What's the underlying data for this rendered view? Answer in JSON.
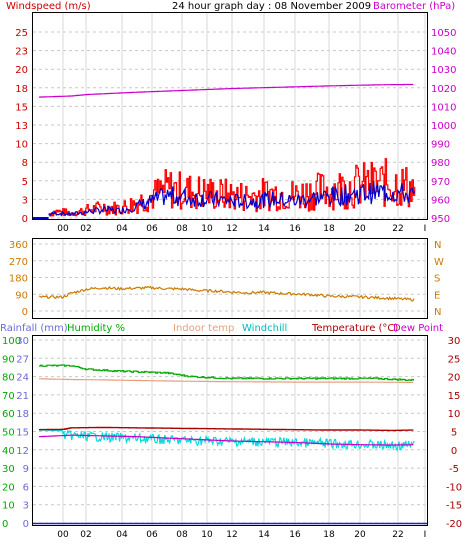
{
  "header": {
    "title": "24 hour graph day : 08 November 2009",
    "left_label": "Windspeed (m/s)",
    "right_label": "Barometer (hPa)"
  },
  "colors": {
    "windspeed": "#ff0000",
    "wind_avg": "#0000cc",
    "barometer": "#cc00cc",
    "direction": "#cc7a00",
    "rainfall": "#6b6bd6",
    "humidity": "#00aa00",
    "indoor": "#e8a080",
    "windchill": "#00dddd",
    "temperature": "#aa0000",
    "dewpoint": "#cc00cc",
    "grid": "#c8c8c8",
    "vgrid": "#d8d8d8"
  },
  "chart_data": [
    {
      "type": "line",
      "panel": "wind",
      "ylim_left": [
        0,
        25
      ],
      "left_ticks": [
        "25",
        "23",
        "20",
        "18",
        "15",
        "13",
        "10",
        "8",
        "5",
        "3",
        "0"
      ],
      "ylim_right": [
        950,
        1050
      ],
      "right_ticks": [
        "1050",
        "1040",
        "1030",
        "1020",
        "1010",
        "1000",
        "990",
        "980",
        "970",
        "960",
        "950"
      ],
      "x_ticks": [
        "00",
        "02",
        "04",
        "06",
        "08",
        "10",
        "12",
        "14",
        "16",
        "18",
        "20",
        "22",
        "I"
      ],
      "series": [
        {
          "name": "Windspeed (m/s)",
          "x": [
            0.6,
            1.0,
            2.0,
            3.0,
            4.0,
            5.0,
            6.0,
            7.0,
            8.0,
            9.0,
            10.0,
            11.0,
            12.0,
            13.0,
            14.0,
            15.0,
            16.0,
            17.0,
            18.0,
            19.0,
            20.0,
            21.0,
            22.0,
            23.0,
            23.5
          ],
          "y": [
            0.8,
            1.2,
            0.9,
            1.5,
            2.0,
            1.8,
            2.8,
            4.0,
            5.5,
            5.0,
            4.8,
            4.5,
            4.2,
            4.0,
            4.4,
            4.6,
            4.2,
            4.8,
            5.2,
            5.6,
            6.0,
            6.3,
            6.5,
            5.8,
            5.2
          ]
        },
        {
          "name": "Barometer (hPa)",
          "x": [
            0.0,
            2.0,
            3.0,
            6.0,
            9.0,
            12.0,
            15.0,
            18.0,
            20.0,
            22.0,
            23.5
          ],
          "y": [
            1015.0,
            1015.6,
            1016.4,
            1017.6,
            1018.6,
            1019.6,
            1020.3,
            1021.0,
            1021.4,
            1021.7,
            1021.8
          ]
        }
      ]
    },
    {
      "type": "line",
      "panel": "direction",
      "ylim": [
        0,
        360
      ],
      "left_ticks": [
        "360",
        "270",
        "180",
        "90",
        "0"
      ],
      "right_ticks": [
        "N",
        "W",
        "S",
        "E",
        "N"
      ],
      "series": [
        {
          "name": "Wind direction",
          "x": [
            0.0,
            1.5,
            2.0,
            3.0,
            4.0,
            5.0,
            6.0,
            7.0,
            8.0,
            9.0,
            10.0,
            11.0,
            12.0,
            13.0,
            14.0,
            15.0,
            16.0,
            17.0,
            18.0,
            19.0,
            20.0,
            21.0,
            22.0,
            23.5
          ],
          "y": [
            75,
            75,
            95,
            118,
            125,
            120,
            122,
            125,
            120,
            118,
            110,
            108,
            102,
            98,
            100,
            95,
            92,
            88,
            80,
            78,
            76,
            72,
            68,
            60
          ]
        }
      ]
    },
    {
      "type": "line",
      "panel": "temperature",
      "legend": [
        "Rainfall (mm)",
        "Humidity %",
        "Indoor temp",
        "Windchill",
        "Temperature (°C)",
        "Dew Point"
      ],
      "rain_ticks": [
        "30",
        "27",
        "24",
        "21",
        "18",
        "15",
        "12",
        "9",
        "6",
        "3",
        "0"
      ],
      "hum_ticks": [
        "100",
        "90",
        "80",
        "70",
        "60",
        "50",
        "40",
        "30",
        "20",
        "10",
        "0"
      ],
      "temp_ticks": [
        "30",
        "25",
        "20",
        "15",
        "10",
        "5",
        "0",
        "-5",
        "-10",
        "-15",
        "-20"
      ],
      "ylim_temp": [
        -20,
        30
      ],
      "ylim_hum": [
        0,
        100
      ],
      "series": [
        {
          "name": "Humidity %",
          "x": [
            0.0,
            2.0,
            3.0,
            5.0,
            8.0,
            9.5,
            12.0,
            15.0,
            18.0,
            21.0,
            23.5
          ],
          "y": [
            86,
            86,
            84,
            83,
            82,
            80,
            79,
            79,
            79,
            79,
            78
          ]
        },
        {
          "name": "Indoor temp",
          "x": [
            0.0,
            2.0,
            4.0,
            8.0,
            12.0,
            16.0,
            20.0,
            23.5
          ],
          "y": [
            19.4,
            19.2,
            19.1,
            18.8,
            18.6,
            18.5,
            18.5,
            18.4
          ]
        },
        {
          "name": "Temperature (°C)",
          "x": [
            0.0,
            1.5,
            2.0,
            4.0,
            6.0,
            8.0,
            10.0,
            12.0,
            14.0,
            16.0,
            18.0,
            20.0,
            22.0,
            23.5
          ],
          "y": [
            5.5,
            5.6,
            6.0,
            6.1,
            6.0,
            5.9,
            5.8,
            5.7,
            5.6,
            5.5,
            5.4,
            5.4,
            5.3,
            5.4
          ]
        },
        {
          "name": "Windchill",
          "x": [
            0.0,
            2.0,
            4.0,
            6.0,
            8.0,
            10.0,
            12.0,
            14.0,
            16.0,
            18.0,
            20.0,
            22.0,
            23.5
          ],
          "y": [
            5.4,
            5.2,
            4.8,
            4.4,
            4.0,
            3.8,
            3.6,
            3.5,
            3.3,
            3.0,
            2.8,
            2.4,
            2.6
          ]
        },
        {
          "name": "Dew Point",
          "x": [
            0.0,
            2.0,
            4.0,
            6.0,
            8.0,
            10.0,
            12.0,
            14.0,
            16.0,
            18.0,
            20.0,
            22.0,
            23.5
          ],
          "y": [
            3.6,
            4.0,
            3.8,
            3.6,
            3.2,
            2.8,
            2.4,
            2.2,
            2.0,
            1.6,
            1.4,
            1.3,
            1.4
          ]
        },
        {
          "name": "Rainfall (mm)",
          "x": [
            0.0,
            23.5
          ],
          "y": [
            0,
            0
          ]
        }
      ]
    }
  ]
}
